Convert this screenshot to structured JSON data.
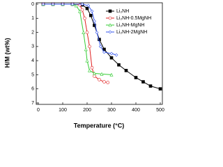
{
  "chart_data": {
    "type": "line",
    "xlabel": "Temperature (°C)",
    "ylabel": "H/M (wt%)",
    "xlim": [
      0,
      500
    ],
    "xticks": [
      0,
      100,
      200,
      300,
      400,
      500
    ],
    "ylim": [
      0,
      7
    ],
    "yticks": [
      0,
      1,
      2,
      3,
      4,
      5,
      6,
      7
    ],
    "y_inverted": true,
    "legend": "upper right",
    "series": [
      {
        "name": "Li₂NH",
        "color": "#000000",
        "marker": "square",
        "x": [
          20,
          60,
          100,
          140,
          180,
          200,
          215,
          230,
          250,
          270,
          300,
          330,
          360,
          400,
          430,
          460,
          500
        ],
        "values": [
          0,
          0,
          0,
          0,
          0.05,
          0.3,
          0.8,
          1.5,
          2.5,
          3.2,
          3.8,
          4.3,
          4.7,
          5.2,
          5.5,
          5.8,
          6.0
        ]
      },
      {
        "name": "Li₂NH-0.5MgNH",
        "color": "#e02020",
        "marker": "circle",
        "x": [
          20,
          60,
          100,
          140,
          170,
          180,
          190,
          200,
          210,
          220,
          230,
          250,
          270,
          285
        ],
        "values": [
          0,
          0,
          0,
          0,
          0.05,
          0.4,
          1.0,
          2.0,
          3.0,
          4.5,
          5.1,
          5.35,
          5.5,
          5.55
        ]
      },
      {
        "name": "Li₂NH-MgNH",
        "color": "#33cc33",
        "marker": "triangle",
        "x": [
          20,
          60,
          100,
          140,
          155,
          170,
          185,
          195,
          200,
          210,
          230,
          260,
          300
        ],
        "values": [
          0,
          0,
          0,
          0,
          0.1,
          0.5,
          2.0,
          3.2,
          4.0,
          4.7,
          4.9,
          4.95,
          5.0
        ]
      },
      {
        "name": "Li₂NH-2MgNH",
        "color": "#3355ee",
        "marker": "diamond",
        "x": [
          20,
          60,
          100,
          140,
          180,
          205,
          220,
          230,
          240,
          255,
          270,
          300,
          320
        ],
        "values": [
          0,
          0,
          0,
          0,
          0,
          0.1,
          0.5,
          1.2,
          2.0,
          3.0,
          3.4,
          3.5,
          3.6
        ]
      }
    ]
  }
}
